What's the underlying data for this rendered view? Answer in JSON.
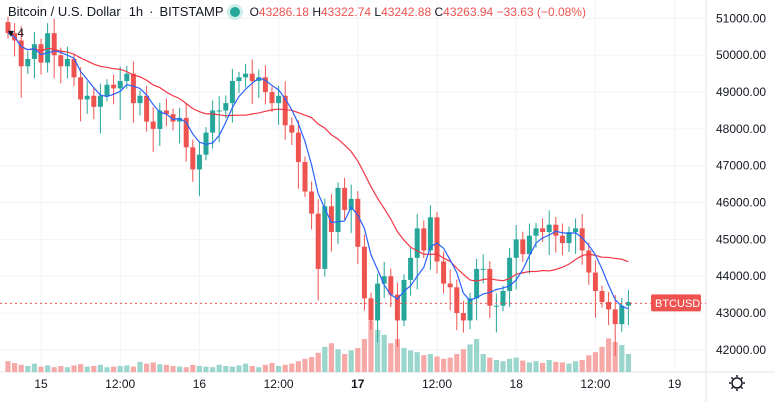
{
  "header": {
    "symbol": "Bitcoin / U.S. Dollar",
    "sep1": "·",
    "interval": "1h",
    "sep2": "·",
    "exchange": "BITSTAMP",
    "ohlc": {
      "o_label": "O",
      "o": "43286.18",
      "h_label": "H",
      "h": "43322.74",
      "l_label": "L",
      "l": "43242.88",
      "c_label": "C",
      "c": "43263.94",
      "change": "−33.63 (−0.08%)"
    },
    "collapsed_count": "4"
  },
  "price_badge": "BTCUSD",
  "colors": {
    "up": "#26a69a",
    "down": "#ef5350",
    "ma_fast": "#2962ff",
    "ma_slow": "#f23645",
    "vol_up": "#9ad6cc",
    "vol_down": "#f7a9a7"
  },
  "icons": {
    "settings": "gear-icon",
    "collapse": "chevron-down-icon"
  },
  "chart_data": {
    "type": "candlestick",
    "ylim": [
      41400,
      51500
    ],
    "y_ticks": [
      "51000.00",
      "50000.00",
      "49000.00",
      "48000.00",
      "47000.00",
      "46000.00",
      "45000.00",
      "44000.00",
      "43000.00",
      "42000.00"
    ],
    "y_tick_values": [
      51000,
      50000,
      49000,
      48000,
      47000,
      46000,
      45000,
      44000,
      43000,
      42000
    ],
    "x_ticks": [
      {
        "label": "15",
        "bold": false
      },
      {
        "label": "12:00",
        "bold": false
      },
      {
        "label": "16",
        "bold": false
      },
      {
        "label": "12:00",
        "bold": false
      },
      {
        "label": "17",
        "bold": true
      },
      {
        "label": "12:00",
        "bold": false
      },
      {
        "label": "18",
        "bold": false
      },
      {
        "label": "12:00",
        "bold": false
      },
      {
        "label": "19",
        "bold": false
      }
    ],
    "x_tick_index": [
      5,
      17,
      29,
      41,
      53,
      65,
      77,
      89,
      101
    ],
    "last_price": 43263.94,
    "dashed_line_price": 43263.94,
    "closes": [
      50600,
      50400,
      49700,
      49900,
      50300,
      49800,
      50600,
      50000,
      49700,
      49900,
      49400,
      48800,
      48900,
      48600,
      48900,
      49200,
      49100,
      49300,
      49500,
      48700,
      48900,
      48200,
      48000,
      48500,
      48400,
      48200,
      48300,
      47500,
      46900,
      47300,
      47900,
      48500,
      48500,
      48700,
      49300,
      49400,
      49500,
      49300,
      49400,
      49000,
      48700,
      48900,
      48100,
      47900,
      47100,
      46300,
      45700,
      44200,
      45900,
      45200,
      46400,
      45800,
      46100,
      44800,
      43400,
      42800,
      43800,
      44000,
      43500,
      42800,
      43900,
      44500,
      45300,
      44700,
      45600,
      44400,
      43800,
      43700,
      43000,
      42800,
      43400,
      44200,
      44200,
      43200,
      43200,
      43600,
      44500,
      45000,
      44600,
      45100,
      45300,
      45200,
      45400,
      45100,
      44900,
      45200,
      45300,
      44700,
      44100,
      43600,
      43300,
      43100,
      42700,
      43200,
      43300
    ],
    "volumes": [
      0.18,
      0.15,
      0.12,
      0.1,
      0.14,
      0.09,
      0.11,
      0.08,
      0.1,
      0.08,
      0.11,
      0.13,
      0.09,
      0.1,
      0.12,
      0.08,
      0.09,
      0.1,
      0.11,
      0.09,
      0.17,
      0.14,
      0.16,
      0.13,
      0.12,
      0.1,
      0.09,
      0.08,
      0.12,
      0.1,
      0.09,
      0.08,
      0.12,
      0.1,
      0.09,
      0.11,
      0.14,
      0.1,
      0.08,
      0.12,
      0.15,
      0.1,
      0.12,
      0.14,
      0.18,
      0.22,
      0.25,
      0.32,
      0.42,
      0.48,
      0.38,
      0.3,
      0.36,
      0.4,
      0.55,
      0.85,
      0.7,
      0.62,
      0.48,
      0.55,
      0.4,
      0.36,
      0.33,
      0.28,
      0.3,
      0.26,
      0.22,
      0.24,
      0.3,
      0.38,
      0.46,
      0.55,
      0.3,
      0.24,
      0.2,
      0.18,
      0.22,
      0.24,
      0.19,
      0.16,
      0.18,
      0.15,
      0.2,
      0.17,
      0.16,
      0.14,
      0.18,
      0.2,
      0.28,
      0.33,
      0.42,
      0.56,
      0.5,
      0.45,
      0.3
    ]
  }
}
